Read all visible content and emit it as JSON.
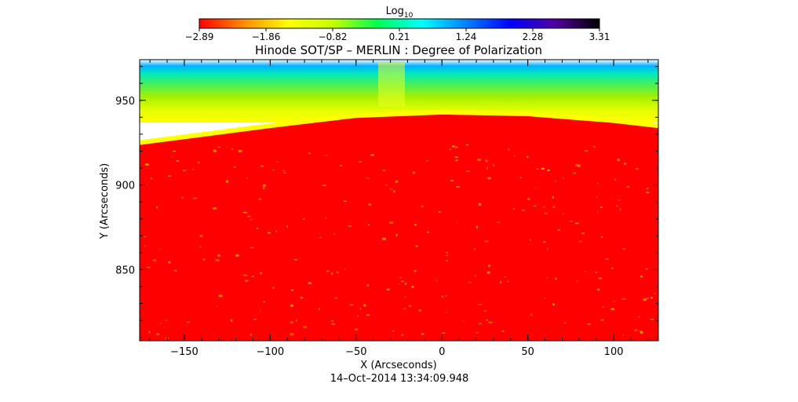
{
  "chart_data": {
    "type": "heatmap",
    "title": "Hinode SOT/SP – MERLIN : Degree of Polarization",
    "xlabel": "X (Arcseconds)",
    "ylabel": "Y (Arcseconds)",
    "date": "14–Oct–2014 13:34:09.948",
    "xlim": [
      -176,
      126
    ],
    "ylim": [
      808,
      974
    ],
    "x_ticks": [
      {
        "value": -150,
        "label": "−150"
      },
      {
        "value": -100,
        "label": "−100"
      },
      {
        "value": -50,
        "label": "−50"
      },
      {
        "value": 0,
        "label": "0"
      },
      {
        "value": 50,
        "label": "50"
      },
      {
        "value": 100,
        "label": "100"
      }
    ],
    "y_ticks": [
      {
        "value": 850,
        "label": "850"
      },
      {
        "value": 900,
        "label": "900"
      },
      {
        "value": 950,
        "label": "950"
      }
    ],
    "colorbar": {
      "title_base": "Log",
      "title_sub": "10",
      "min": -2.89,
      "max": 3.31,
      "tick_labels": [
        "−2.89",
        "−1.86",
        "−0.82",
        "0.21",
        "1.24",
        "2.28",
        "3.31"
      ],
      "colors": [
        "#ff0000",
        "#ff8c00",
        "#ffff00",
        "#c8ff00",
        "#00ff50",
        "#00ffff",
        "#0080ff",
        "#0000ff",
        "#5000a0",
        "#000000"
      ]
    },
    "colors": {
      "disk": "#ff0000",
      "limb": "#ffff00",
      "off_limb_mid": "#a8f000",
      "off_limb_far": "#00e8c0",
      "outer": "#00b0ff"
    },
    "limb_profile": [
      {
        "x": -176,
        "y": 925
      },
      {
        "x": -100,
        "y": 935
      },
      {
        "x": -50,
        "y": 941
      },
      {
        "x": 0,
        "y": 943
      },
      {
        "x": 50,
        "y": 942
      },
      {
        "x": 100,
        "y": 938
      },
      {
        "x": 126,
        "y": 935
      }
    ]
  }
}
